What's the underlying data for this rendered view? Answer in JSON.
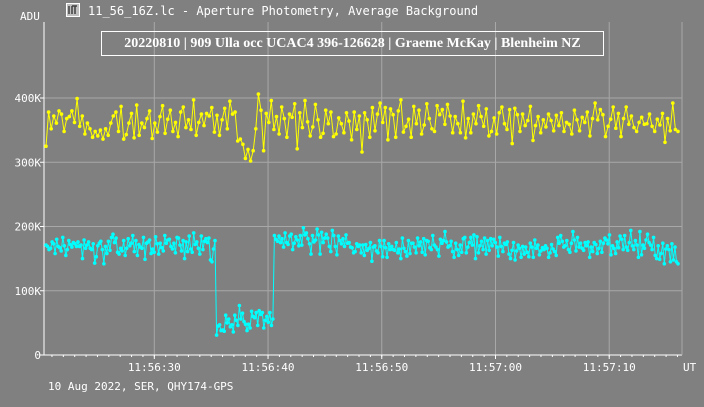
{
  "window": {
    "title": "11_56_16Z.lc - Aperture Photometry, Average Background",
    "icon": "lightcurve-app-icon"
  },
  "annotation": "20220810 | 909 Ulla occ UCAC4 396-126628 | Graeme McKay | Blenheim NZ",
  "footer": "10 Aug 2022, SER, QHY174-GPS",
  "colors": {
    "background": "#808080",
    "grid": "#a8a8a8",
    "target": "#ffff00",
    "comparison": "#00ffff",
    "text": "#ffffff"
  },
  "chart_data": {
    "type": "line",
    "ylabel": "ADU",
    "xunit": "UT",
    "x_range": [
      "11:56:20.3",
      "11:57:16.4"
    ],
    "ylim": [
      0,
      400000
    ],
    "y_ticks": [
      "0",
      "100K",
      "200K",
      "300K",
      "400K"
    ],
    "x_ticks": [
      "11:56:30",
      "11:56:40",
      "11:56:50",
      "11:57:00",
      "11:57:10"
    ],
    "grid": true,
    "series_encoding": "values in ADU, one point per frame, frames evenly spaced across x_range",
    "series": [
      {
        "color": "#ffff00",
        "values": [
          325000,
          378000,
          352000,
          372000,
          361000,
          380000,
          375000,
          348000,
          368000,
          371000,
          380000,
          362000,
          399000,
          356000,
          372000,
          344000,
          361000,
          352000,
          339000,
          348000,
          341000,
          350000,
          336000,
          352000,
          342000,
          361000,
          372000,
          378000,
          348000,
          387000,
          336000,
          343000,
          361000,
          376000,
          338000,
          389000,
          342000,
          361000,
          354000,
          368000,
          380000,
          337000,
          361000,
          347000,
          371000,
          388000,
          345000,
          367000,
          381000,
          348000,
          362000,
          340000,
          378000,
          386000,
          354000,
          366000,
          351000,
          397000,
          342000,
          362000,
          375000,
          357000,
          376000,
          372000,
          385000,
          347000,
          373000,
          342000,
          366000,
          384000,
          352000,
          395000,
          375000,
          378000,
          333000,
          336000,
          328000,
          306000,
          320000,
          302000,
          318000,
          352000,
          406000,
          381000,
          318000,
          376000,
          362000,
          396000,
          351000,
          371000,
          344000,
          386000,
          368000,
          339000,
          375000,
          370000,
          391000,
          321000,
          377000,
          354000,
          396000,
          363000,
          341000,
          355000,
          390000,
          366000,
          339000,
          345000,
          381000,
          360000,
          378000,
          340000,
          344000,
          369000,
          360000,
          346000,
          377000,
          364000,
          335000,
          378000,
          351000,
          372000,
          316000,
          377000,
          366000,
          339000,
          385000,
          349000,
          375000,
          392000,
          362000,
          385000,
          335000,
          383000,
          374000,
          339000,
          380000,
          397000,
          347000,
          356000,
          367000,
          339000,
          387000,
          360000,
          381000,
          344000,
          358000,
          391000,
          368000,
          352000,
          348000,
          388000,
          374000,
          382000,
          359000,
          390000,
          372000,
          346000,
          371000,
          360000,
          346000,
          395000,
          338000,
          368000,
          346000,
          375000,
          360000,
          388000,
          371000,
          356000,
          383000,
          341000,
          348000,
          369000,
          344000,
          377000,
          386000,
          360000,
          351000,
          382000,
          329000,
          384000,
          374000,
          348000,
          375000,
          357000,
          365000,
          387000,
          334000,
          357000,
          371000,
          346000,
          366000,
          355000,
          375000,
          365000,
          349000,
          373000,
          357000,
          377000,
          348000,
          362000,
          359000,
          344000,
          381000,
          366000,
          349000,
          370000,
          362000,
          378000,
          341000,
          368000,
          392000,
          366000,
          382000,
          374000,
          340000,
          356000,
          367000,
          386000,
          353000,
          376000,
          340000,
          368000,
          386000,
          359000,
          372000,
          354000,
          348000,
          362000,
          370000,
          359000,
          360000,
          375000,
          356000,
          348000,
          367000,
          358000,
          376000,
          331000,
          368000,
          349000,
          392000,
          351000,
          348000
        ]
      },
      {
        "color": "#00ffff",
        "values": [
          171000,
          169000,
          164000,
          166000,
          176000,
          173000,
          158000,
          180000,
          169000,
          167000,
          162000,
          183000,
          170000,
          155000,
          164000,
          178000,
          172000,
          168000,
          175000,
          173000,
          169000,
          176000,
          169000,
          171000,
          150000,
          179000,
          166000,
          171000,
          176000,
          166000,
          164000,
          173000,
          143000,
          153000,
          170000,
          174000,
          177000,
          164000,
          142000,
          169000,
          158000,
          177000,
          163000,
          183000,
          188000,
          175000,
          182000,
          160000,
          157000,
          166000,
          162000,
          178000,
          155000,
          166000,
          181000,
          170000,
          174000,
          186000,
          161000,
          178000,
          155000,
          172000,
          168000,
          166000,
          183000,
          149000,
          174000,
          176000,
          179000,
          158000,
          165000,
          160000,
          184000,
          173000,
          157000,
          174000,
          167000,
          162000,
          186000,
          174000,
          179000,
          180000,
          169000,
          165000,
          174000,
          159000,
          183000,
          182000,
          171000,
          162000,
          178000,
          150000,
          176000,
          161000,
          185000,
          165000,
          160000,
          190000,
          172000,
          176000,
          166000,
          157000,
          185000,
          164000,
          177000,
          181000,
          175000,
          182000,
          148000,
          145000,
          165000,
          178000,
          31000,
          45000,
          47000,
          38000,
          39000,
          37000,
          62000,
          50000,
          56000,
          44000,
          47000,
          36000,
          62000,
          54000,
          46000,
          77000,
          56000,
          65000,
          52000,
          48000,
          38000,
          48000,
          42000,
          68000,
          60000,
          58000,
          66000,
          46000,
          69000,
          63000,
          66000,
          42000,
          54000,
          60000,
          51000,
          66000,
          46000,
          56000,
          186000,
          180000,
          177000,
          185000,
          175000,
          181000,
          168000,
          190000,
          175000,
          172000,
          185000,
          188000,
          164000,
          174000,
          184000,
          179000,
          170000,
          186000,
          171000,
          198000,
          187000,
          190000,
          181000,
          173000,
          157000,
          186000,
          176000,
          179000,
          196000,
          187000,
          157000,
          191000,
          175000,
          182000,
          188000,
          182000,
          169000,
          161000,
          194000,
          186000,
          169000,
          156000,
          185000,
          178000,
          173000,
          181000,
          169000,
          187000,
          174000,
          175000,
          168000,
          167000,
          159000,
          161000,
          173000,
          169000,
          171000,
          159000,
          171000,
          155000,
          172000,
          163000,
          166000,
          175000,
          146000,
          168000,
          170000,
          162000,
          159000,
          178000,
          169000,
          153000,
          178000,
          167000,
          152000,
          173000,
          164000,
          169000,
          164000,
          163000,
          175000,
          159000,
          165000,
          150000,
          182000,
          166000,
          161000,
          154000,
          178000,
          158000,
          174000,
          174000,
          168000,
          159000,
          182000,
          170000,
          176000,
          160000,
          181000,
          156000,
          178000,
          177000,
          167000,
          164000,
          186000,
          171000,
          168000,
          164000,
          154000,
          180000,
          174000,
          178000,
          192000,
          176000,
          168000,
          170000,
          177000,
          161000,
          152000,
          174000,
          164000,
          155000,
          171000,
          160000,
          181000,
          183000,
          159000,
          168000,
          175000,
          183000,
          171000,
          187000,
          150000,
          184000,
          159000,
          170000,
          177000,
          164000,
          182000,
          157000,
          178000,
          163000,
          181000,
          170000,
          180000,
          175000,
          168000,
          154000,
          183000,
          169000,
          161000,
          174000,
          172000,
          176000,
          157000,
          150000,
          163000,
          175000,
          148000,
          162000,
          171000,
          166000,
          152000,
          169000,
          157000,
          168000,
          160000,
          153000,
          174000,
          168000,
          152000,
          179000,
          166000,
          171000,
          156000,
          162000,
          167000,
          164000,
          170000,
          166000,
          152000,
          159000,
          172000,
          165000,
          161000,
          155000,
          183000,
          174000,
          186000,
          177000,
          168000,
          170000,
          178000,
          164000,
          160000,
          174000,
          192000,
          179000,
          162000,
          183000,
          168000,
          174000,
          166000,
          163000,
          175000,
          170000,
          176000,
          152000,
          168000,
          161000,
          175000,
          172000,
          158000,
          166000,
          177000,
          160000,
          174000,
          182000,
          179000,
          173000,
          187000,
          156000,
          170000,
          166000,
          158000,
          176000,
          167000,
          185000,
          180000,
          164000,
          186000,
          168000,
          163000,
          175000,
          194000,
          170000,
          164000,
          178000,
          171000,
          152000,
          192000,
          156000,
          171000,
          166000,
          179000,
          188000,
          175000,
          171000,
          164000,
          183000,
          155000,
          150000,
          170000,
          149000,
          158000,
          174000,
          142000,
          165000,
          170000,
          164000,
          145000,
          173000,
          148000,
          168000,
          145000,
          142000
        ]
      }
    ]
  }
}
